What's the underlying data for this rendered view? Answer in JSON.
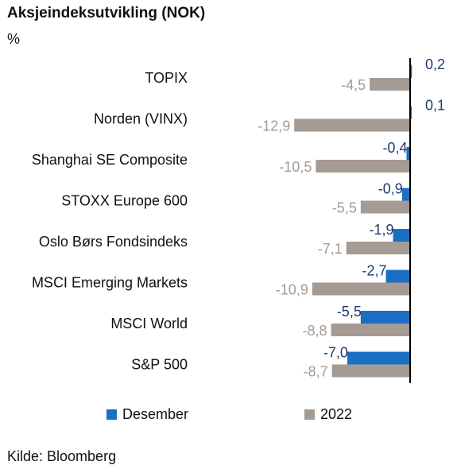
{
  "title": "Aksjeindeksutvikling (NOK)",
  "unit": "%",
  "source": "Kilde: Bloomberg",
  "colors": {
    "desember": "#1a6fc4",
    "year2022": "#a39b94",
    "label_desember": "#1f3b73",
    "label_2022": "#a39b94",
    "axis": "#000000"
  },
  "chart_data": {
    "type": "bar",
    "orientation": "horizontal",
    "categories": [
      "TOPIX",
      "Norden (VINX)",
      "Shanghai SE Composite",
      "STOXX Europe 600",
      "Oslo Børs Fondsindeks",
      "MSCI Emerging Markets",
      "MSCI World",
      "S&P 500"
    ],
    "series": [
      {
        "name": "Desember",
        "values": [
          0.2,
          0.1,
          -0.4,
          -0.9,
          -1.9,
          -2.7,
          -5.5,
          -7.0
        ],
        "labels": [
          "0,2",
          "0,1",
          "-0,4",
          "-0,9",
          "-1,9",
          "-2,7",
          "-5,5",
          "-7,0"
        ]
      },
      {
        "name": "2022",
        "values": [
          -4.5,
          -12.9,
          -10.5,
          -5.5,
          -7.1,
          -10.9,
          -8.8,
          -8.7
        ],
        "labels": [
          "-4,5",
          "-12,9",
          "-10,5",
          "-5,5",
          "-7,1",
          "-10,9",
          "-8,8",
          "-8,7"
        ]
      }
    ],
    "legend_position": "bottom",
    "grid": false
  }
}
